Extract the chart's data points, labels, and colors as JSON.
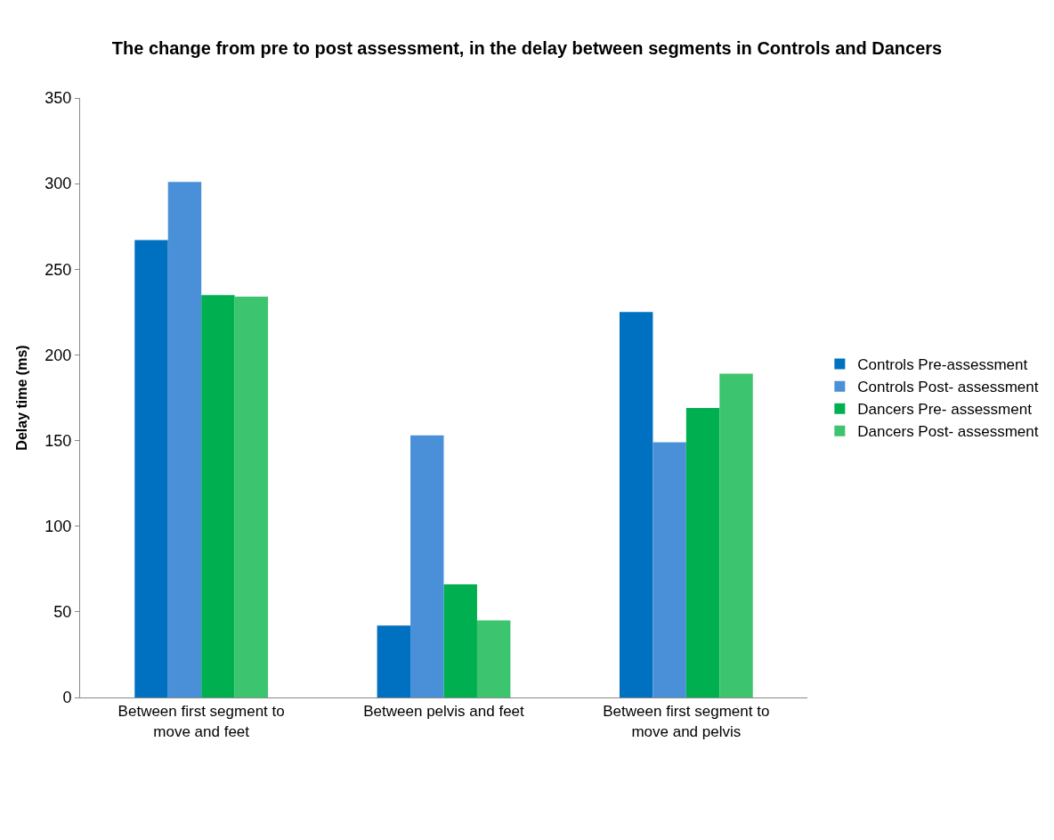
{
  "chart_data": {
    "type": "bar",
    "title": "The change from pre to post assessment, in the delay between segments in Controls and Dancers",
    "ylabel": "Delay time (ms)",
    "categories": [
      "Between first segment to move and feet",
      "Between pelvis and feet",
      "Between first segment to move and pelvis"
    ],
    "series": [
      {
        "name": "Controls Pre-assessment",
        "color": "#0070c0",
        "values": [
          267,
          42,
          225
        ]
      },
      {
        "name": "Controls Post- assessment",
        "color": "#4a90d9",
        "values": [
          301,
          153,
          149
        ]
      },
      {
        "name": "Dancers Pre- assessment",
        "color": "#00b050",
        "values": [
          235,
          66,
          169
        ]
      },
      {
        "name": "Dancers Post- assessment",
        "color": "#3cc46e",
        "values": [
          234,
          45,
          189
        ]
      }
    ],
    "ylim": [
      0,
      350
    ],
    "yticks": [
      0,
      50,
      100,
      150,
      200,
      250,
      300,
      350
    ],
    "grid": false,
    "legend": "right"
  }
}
